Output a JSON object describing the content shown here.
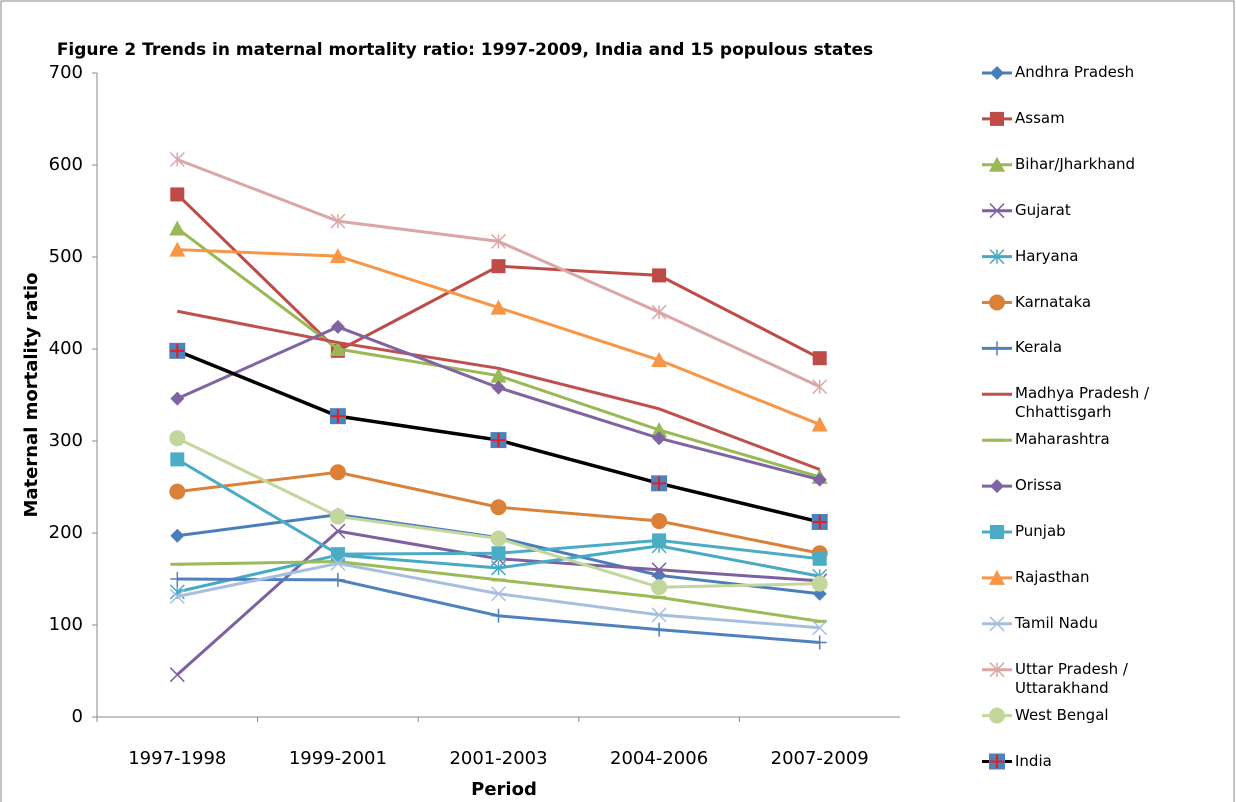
{
  "chart_data": {
    "type": "line",
    "title": "Figure 2 Trends in maternal mortality ratio: 1997-2009, India and 15 populous states",
    "x_label": "Period",
    "y_label": "Maternal mortality ratio",
    "categories": [
      "1997-1998",
      "1999-2001",
      "2001-2003",
      "2004-2006",
      "2007-2009"
    ],
    "ylim": [
      0,
      700
    ],
    "yticks": [
      0,
      100,
      200,
      300,
      400,
      500,
      600,
      700
    ],
    "grid": false,
    "legend": "right",
    "series": [
      {
        "name": "Andhra Pradesh",
        "color": "#4a7ebb",
        "marker": "diamond",
        "values": [
          197,
          220,
          195,
          154,
          134
        ]
      },
      {
        "name": "Assam",
        "color": "#be4b48",
        "marker": "square",
        "values": [
          568,
          398,
          490,
          480,
          390
        ]
      },
      {
        "name": "Bihar/Jharkhand",
        "color": "#98b954",
        "marker": "triangle",
        "values": [
          531,
          400,
          371,
          312,
          261
        ]
      },
      {
        "name": "Gujarat",
        "color": "#7d60a0",
        "marker": "x",
        "values": [
          46,
          202,
          172,
          160,
          148
        ]
      },
      {
        "name": "Haryana",
        "color": "#46aac5",
        "marker": "star",
        "values": [
          136,
          176,
          162,
          186,
          153
        ]
      },
      {
        "name": "Karnataka",
        "color": "#da8137",
        "marker": "circle",
        "values": [
          245,
          266,
          228,
          213,
          178
        ]
      },
      {
        "name": "Kerala",
        "color": "#4f81bd",
        "marker": "plus",
        "values": [
          150,
          149,
          110,
          95,
          81
        ]
      },
      {
        "name": "Madhya Pradesh / Chhattisgarh",
        "color": "#c0504d",
        "marker": "none",
        "values": [
          441,
          407,
          379,
          335,
          269
        ]
      },
      {
        "name": "Maharashtra",
        "color": "#9bbb59",
        "marker": "dash",
        "values": [
          166,
          169,
          149,
          130,
          104
        ]
      },
      {
        "name": "Orissa",
        "color": "#8064a2",
        "marker": "diamond",
        "values": [
          346,
          424,
          358,
          303,
          258
        ]
      },
      {
        "name": "Punjab",
        "color": "#4bacc6",
        "marker": "square",
        "values": [
          280,
          177,
          178,
          192,
          172
        ]
      },
      {
        "name": "Rajasthan",
        "color": "#f79646",
        "marker": "triangle",
        "values": [
          508,
          501,
          445,
          388,
          318
        ]
      },
      {
        "name": "Tamil Nadu",
        "color": "#a7bfde",
        "marker": "x",
        "values": [
          131,
          167,
          134,
          111,
          97
        ]
      },
      {
        "name": "Uttar Pradesh / Uttarakhand",
        "color": "#dba7a6",
        "marker": "star",
        "values": [
          606,
          539,
          517,
          440,
          359
        ]
      },
      {
        "name": "West Bengal",
        "color": "#c3d69b",
        "marker": "circle",
        "values": [
          303,
          218,
          194,
          141,
          145
        ]
      },
      {
        "name": "India",
        "color": "#000000",
        "marker": "squareplus",
        "values": [
          398,
          327,
          301,
          254,
          212
        ]
      }
    ]
  }
}
